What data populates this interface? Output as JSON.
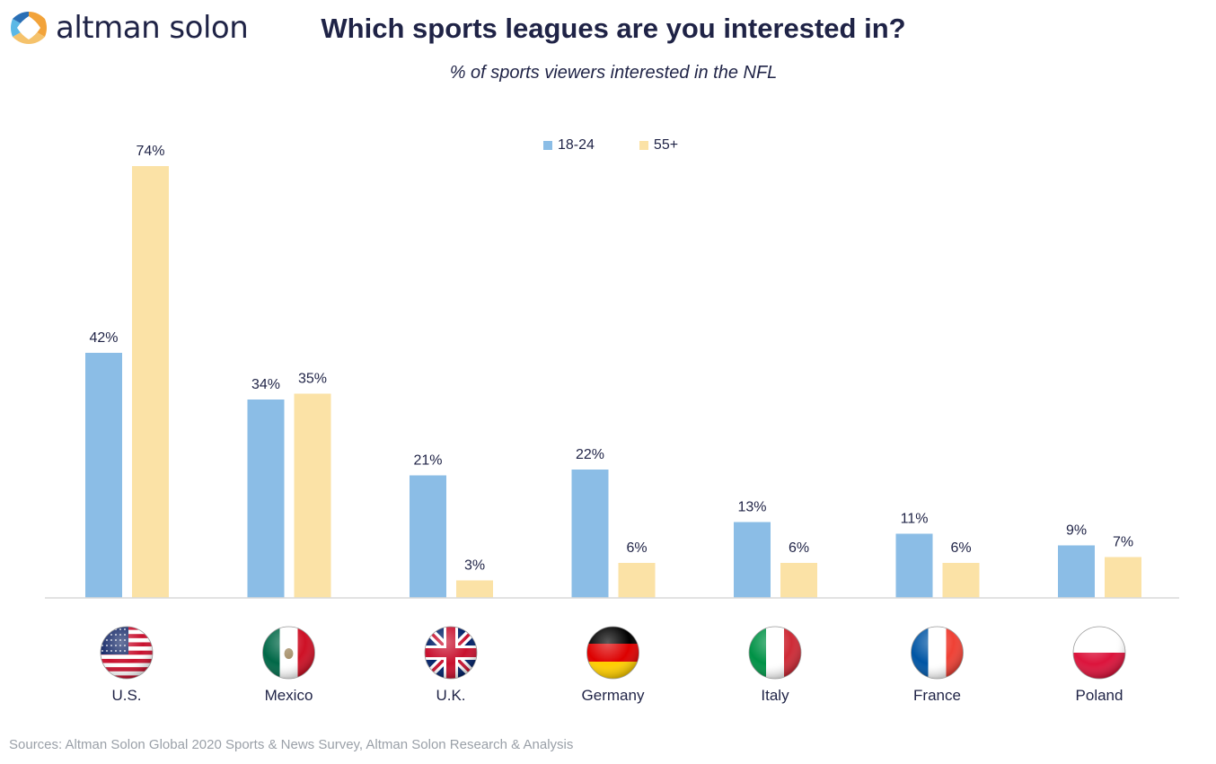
{
  "brand": {
    "name": "altman solon"
  },
  "header": {
    "title": "Which sports leagues are you interested in?",
    "subtitle": "% of sports viewers interested in the NFL"
  },
  "colors": {
    "series_18_24": "#8bbde6",
    "series_55_plus": "#fbe2a6",
    "text": "#1f2346",
    "axis": "#d9d9d9"
  },
  "chart_data": {
    "type": "bar",
    "categories": [
      "U.S.",
      "Mexico",
      "U.K.",
      "Germany",
      "Italy",
      "France",
      "Poland"
    ],
    "flags": [
      "us-flag-icon",
      "mexico-flag-icon",
      "uk-flag-icon",
      "germany-flag-icon",
      "italy-flag-icon",
      "france-flag-icon",
      "poland-flag-icon"
    ],
    "series": [
      {
        "name": "18-24",
        "values": [
          42,
          34,
          21,
          22,
          13,
          11,
          9
        ],
        "labels": [
          "42%",
          "34%",
          "21%",
          "22%",
          "13%",
          "11%",
          "9%"
        ]
      },
      {
        "name": "55+",
        "values": [
          74,
          35,
          3,
          6,
          6,
          6,
          7
        ],
        "labels": [
          "74%",
          "35%",
          "3%",
          "6%",
          "6%",
          "6%",
          "7%"
        ]
      }
    ],
    "ylim": [
      0,
      80
    ],
    "legend_position": "top-center",
    "grid": false
  },
  "footer": {
    "source": "Sources: Altman Solon Global 2020 Sports & News Survey, Altman Solon Research & Analysis"
  }
}
